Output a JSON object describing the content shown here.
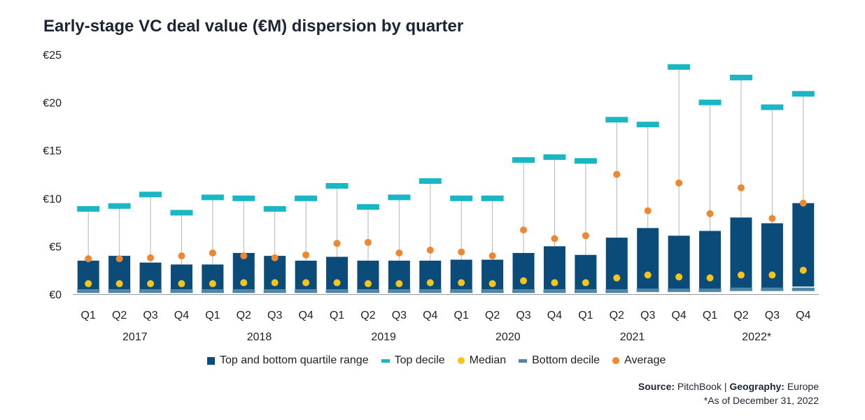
{
  "chart_data": {
    "type": "bar",
    "title": "Early-stage VC deal value (€M) dispersion by quarter",
    "y_ticks": [
      "€0",
      "€5",
      "€10",
      "€15",
      "€20",
      "€25"
    ],
    "ylim": [
      0,
      25
    ],
    "grid": false,
    "legend_position": "bottom",
    "categories": [
      "Q1",
      "Q2",
      "Q3",
      "Q4",
      "Q1",
      "Q2",
      "Q3",
      "Q4",
      "Q1",
      "Q2",
      "Q3",
      "Q4",
      "Q1",
      "Q2",
      "Q3",
      "Q4",
      "Q1",
      "Q2",
      "Q3",
      "Q4",
      "Q1",
      "Q2",
      "Q3",
      "Q4"
    ],
    "years": [
      "2017",
      "2018",
      "2019",
      "2020",
      "2021",
      "2022*"
    ],
    "series": [
      {
        "name": "Top and bottom quartile range",
        "color": "#0a4b7a",
        "low": [
          0.5,
          0.5,
          0.5,
          0.5,
          0.5,
          0.5,
          0.5,
          0.5,
          0.5,
          0.5,
          0.5,
          0.5,
          0.5,
          0.5,
          0.5,
          0.5,
          0.5,
          0.5,
          0.5,
          0.5,
          0.5,
          0.6,
          0.6,
          0.8
        ],
        "high": [
          3.5,
          4.0,
          3.3,
          3.1,
          3.1,
          4.3,
          4.0,
          3.5,
          3.9,
          3.5,
          3.5,
          3.5,
          3.6,
          3.6,
          4.3,
          5.0,
          4.1,
          5.9,
          6.9,
          6.1,
          6.6,
          8.0,
          7.4,
          9.5
        ]
      },
      {
        "name": "Top decile",
        "color": "#19b6c4",
        "values": [
          8.9,
          9.2,
          10.4,
          8.5,
          10.1,
          10.0,
          8.9,
          10.0,
          11.3,
          9.1,
          10.1,
          11.8,
          10.0,
          10.0,
          14.0,
          14.3,
          13.9,
          18.2,
          17.7,
          23.7,
          20.0,
          22.6,
          19.5,
          20.9
        ]
      },
      {
        "name": "Median",
        "color": "#f5c518",
        "values": [
          1.1,
          1.1,
          1.1,
          1.1,
          1.1,
          1.2,
          1.2,
          1.2,
          1.2,
          1.1,
          1.1,
          1.2,
          1.2,
          1.1,
          1.4,
          1.2,
          1.2,
          1.7,
          2.0,
          1.8,
          1.7,
          2.0,
          2.0,
          2.5
        ]
      },
      {
        "name": "Bottom decile",
        "color": "#4d86a6",
        "values": [
          0.2,
          0.2,
          0.2,
          0.2,
          0.2,
          0.2,
          0.2,
          0.2,
          0.2,
          0.2,
          0.2,
          0.2,
          0.2,
          0.2,
          0.2,
          0.2,
          0.2,
          0.2,
          0.3,
          0.3,
          0.3,
          0.4,
          0.4,
          0.4
        ]
      },
      {
        "name": "Average",
        "color": "#ef8630",
        "values": [
          3.7,
          3.7,
          3.8,
          4.0,
          4.3,
          4.0,
          3.8,
          4.1,
          5.3,
          5.4,
          4.3,
          4.6,
          4.4,
          4.0,
          6.7,
          5.8,
          6.1,
          12.5,
          8.7,
          11.6,
          8.4,
          11.1,
          7.9,
          9.5
        ]
      }
    ]
  },
  "source": {
    "label": "Source:",
    "text": "PitchBook",
    "sep": "|",
    "geo_label": "Geography:",
    "geo_text": "Europe"
  },
  "note": "*As of December 31, 2022"
}
